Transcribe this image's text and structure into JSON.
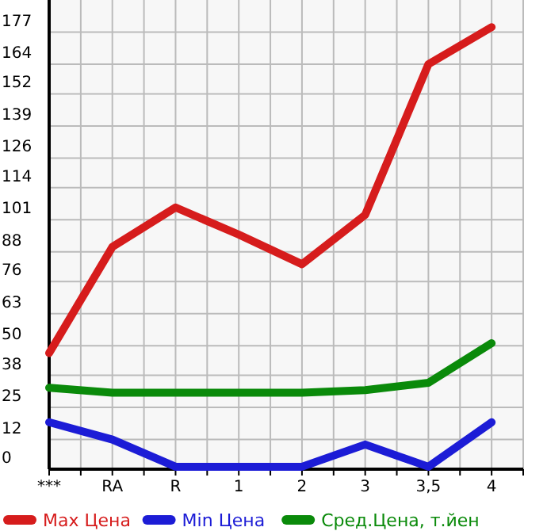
{
  "chart_data": {
    "type": "line",
    "categories": [
      "***",
      "RA",
      "R",
      "1",
      "2",
      "3",
      "3,5",
      "4"
    ],
    "series": [
      {
        "name": "Max Цена",
        "color": "#d61c1c",
        "values": [
          47,
          90,
          106,
          95,
          83,
          103,
          164,
          179
        ]
      },
      {
        "name": "Min Цена",
        "color": "#1c1cd6",
        "values": [
          19,
          12,
          1,
          1,
          1,
          10,
          1,
          19
        ]
      },
      {
        "name": "Сред.Цена, т.йен",
        "color": "#0a8a0a",
        "values": [
          33,
          31,
          31,
          31,
          31,
          32,
          35,
          51
        ]
      }
    ],
    "ylim": [
      0,
      190
    ],
    "yticks": [
      0,
      12,
      25,
      38,
      50,
      63,
      76,
      88,
      101,
      114,
      126,
      139,
      152,
      164,
      177
    ],
    "grid": true,
    "legend": "bottom",
    "marker": "none",
    "line_style": "solid"
  }
}
